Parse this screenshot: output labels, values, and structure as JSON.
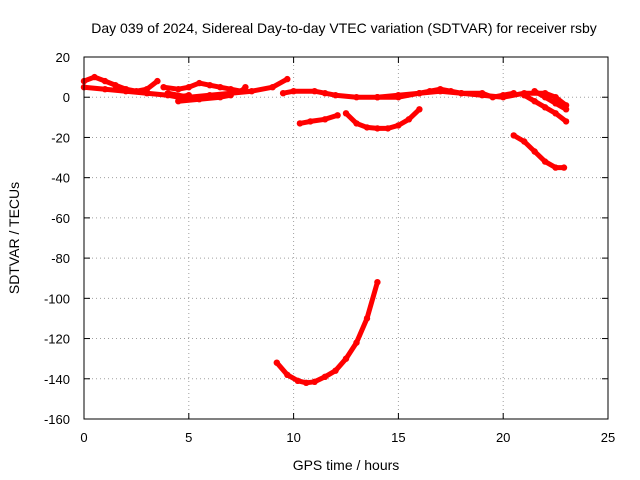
{
  "chart_data": {
    "type": "line",
    "title": "Day 039 of 2024, Sidereal Day-to-day VTEC variation (SDTVAR) for receiver rsby",
    "xlabel": "GPS time / hours",
    "ylabel": "SDTVAR / TECUs",
    "xlim": [
      0,
      25
    ],
    "ylim": [
      -160,
      20
    ],
    "x_ticks": [
      0,
      5,
      10,
      15,
      20,
      25
    ],
    "y_ticks": [
      20,
      0,
      -20,
      -40,
      -60,
      -80,
      -100,
      -120,
      -140,
      -160
    ],
    "grid": true,
    "legend": "none",
    "color": "#ff0000",
    "series": [
      {
        "name": "track-1",
        "points": [
          [
            0,
            8
          ],
          [
            0.5,
            10
          ],
          [
            1,
            8
          ],
          [
            1.5,
            6
          ],
          [
            2,
            4
          ],
          [
            2.5,
            3
          ],
          [
            3,
            4
          ],
          [
            3.5,
            8
          ]
        ]
      },
      {
        "name": "track-2",
        "points": [
          [
            0,
            5
          ],
          [
            1,
            4
          ],
          [
            2,
            3
          ],
          [
            3,
            2
          ],
          [
            4,
            1
          ],
          [
            4.5,
            0
          ],
          [
            5,
            1
          ]
        ]
      },
      {
        "name": "track-3",
        "points": [
          [
            3.8,
            5
          ],
          [
            4.5,
            4
          ],
          [
            5,
            5
          ],
          [
            5.5,
            7
          ],
          [
            6,
            6
          ],
          [
            6.5,
            5
          ],
          [
            7,
            4
          ],
          [
            7.5,
            3
          ],
          [
            7.7,
            5
          ]
        ]
      },
      {
        "name": "track-4",
        "points": [
          [
            4,
            2
          ],
          [
            5,
            0
          ],
          [
            6,
            1
          ],
          [
            7,
            2
          ],
          [
            8,
            3
          ],
          [
            9,
            5
          ],
          [
            9.7,
            9
          ]
        ]
      },
      {
        "name": "track-5",
        "points": [
          [
            4.5,
            -2
          ],
          [
            5.5,
            -1
          ],
          [
            6.5,
            0
          ],
          [
            7,
            1
          ]
        ]
      },
      {
        "name": "track-6",
        "points": [
          [
            9.5,
            2
          ],
          [
            10,
            3
          ],
          [
            11,
            3
          ],
          [
            11.5,
            2
          ],
          [
            12,
            1
          ],
          [
            13,
            0
          ],
          [
            14,
            0
          ],
          [
            15,
            0
          ],
          [
            16,
            2
          ],
          [
            16.5,
            3
          ],
          [
            17,
            4
          ],
          [
            17.5,
            3
          ],
          [
            18,
            2
          ],
          [
            19,
            1
          ],
          [
            20,
            0
          ],
          [
            21,
            2
          ],
          [
            22,
            2
          ],
          [
            22.5,
            0
          ],
          [
            23,
            -4
          ]
        ]
      },
      {
        "name": "track-7",
        "points": [
          [
            14,
            0
          ],
          [
            15,
            1
          ],
          [
            16,
            2
          ],
          [
            17,
            3
          ],
          [
            18,
            2
          ],
          [
            19,
            2
          ],
          [
            19.5,
            0
          ],
          [
            20,
            1
          ],
          [
            20.5,
            2
          ]
        ]
      },
      {
        "name": "track-8",
        "points": [
          [
            21,
            1
          ],
          [
            21.5,
            -2
          ],
          [
            22,
            -5
          ],
          [
            22.5,
            -8
          ],
          [
            23,
            -12
          ]
        ]
      },
      {
        "name": "track-9",
        "points": [
          [
            21.5,
            3
          ],
          [
            22,
            0
          ],
          [
            22.5,
            -3
          ],
          [
            23,
            -6
          ]
        ]
      },
      {
        "name": "track-10",
        "points": [
          [
            10.3,
            -13
          ],
          [
            10.8,
            -12
          ],
          [
            11.5,
            -11
          ],
          [
            12.1,
            -9
          ]
        ]
      },
      {
        "name": "track-11",
        "points": [
          [
            12.5,
            -8
          ],
          [
            13,
            -13
          ],
          [
            13.5,
            -15
          ],
          [
            14,
            -15.5
          ],
          [
            14.5,
            -15.5
          ],
          [
            15,
            -14
          ],
          [
            15.5,
            -11
          ],
          [
            16,
            -6
          ]
        ]
      },
      {
        "name": "track-12",
        "points": [
          [
            20.5,
            -19
          ],
          [
            21,
            -22
          ],
          [
            21.5,
            -27
          ],
          [
            22,
            -32
          ],
          [
            22.5,
            -35
          ],
          [
            22.9,
            -35
          ]
        ]
      },
      {
        "name": "track-13",
        "points": [
          [
            9.2,
            -132
          ],
          [
            9.7,
            -138
          ],
          [
            10.2,
            -141
          ],
          [
            10.6,
            -142
          ],
          [
            11,
            -141.5
          ],
          [
            11.5,
            -139
          ],
          [
            12,
            -136
          ],
          [
            12.5,
            -130
          ],
          [
            13,
            -122
          ],
          [
            13.5,
            -110
          ],
          [
            14,
            -92
          ]
        ]
      }
    ]
  }
}
